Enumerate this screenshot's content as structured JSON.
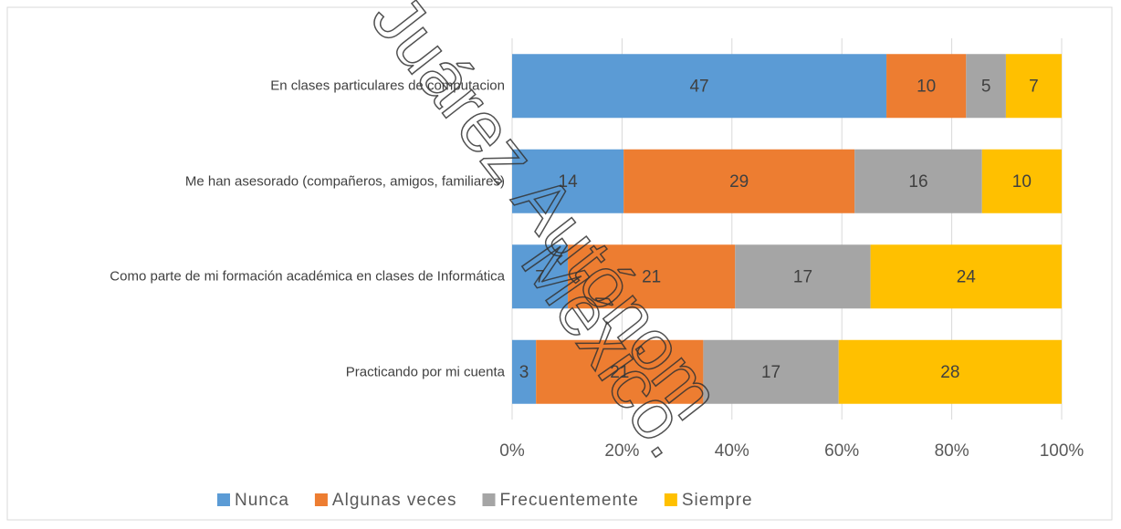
{
  "chart_data": {
    "type": "bar",
    "orientation": "horizontal",
    "percent_stacked": true,
    "categories": [
      "En clases particulares de computacion",
      "Me han asesorado (compañeros, amigos, familiares)",
      "Como parte de mi formación académica en clases de Informática",
      "Practicando por mi cuenta"
    ],
    "series": [
      {
        "name": "Nunca",
        "color": "#5b9bd5",
        "values": [
          47,
          14,
          7,
          3
        ]
      },
      {
        "name": "Algunas veces",
        "color": "#ed7d31",
        "values": [
          10,
          29,
          21,
          21
        ]
      },
      {
        "name": "Frecuentemente",
        "color": "#a5a5a5",
        "values": [
          5,
          16,
          17,
          17
        ]
      },
      {
        "name": "Siempre",
        "color": "#ffc000",
        "values": [
          7,
          10,
          24,
          28
        ]
      }
    ],
    "xlim": [
      0,
      100
    ],
    "xticks": [
      {
        "value": 0,
        "label": "0%"
      },
      {
        "value": 20,
        "label": "20%"
      },
      {
        "value": 40,
        "label": "40%"
      },
      {
        "value": 60,
        "label": "60%"
      },
      {
        "value": 80,
        "label": "80%"
      },
      {
        "value": 100,
        "label": "100%"
      }
    ],
    "grid": true,
    "legend": "bottom",
    "watermark": [
      "Juárez Autónom",
      "México."
    ]
  }
}
